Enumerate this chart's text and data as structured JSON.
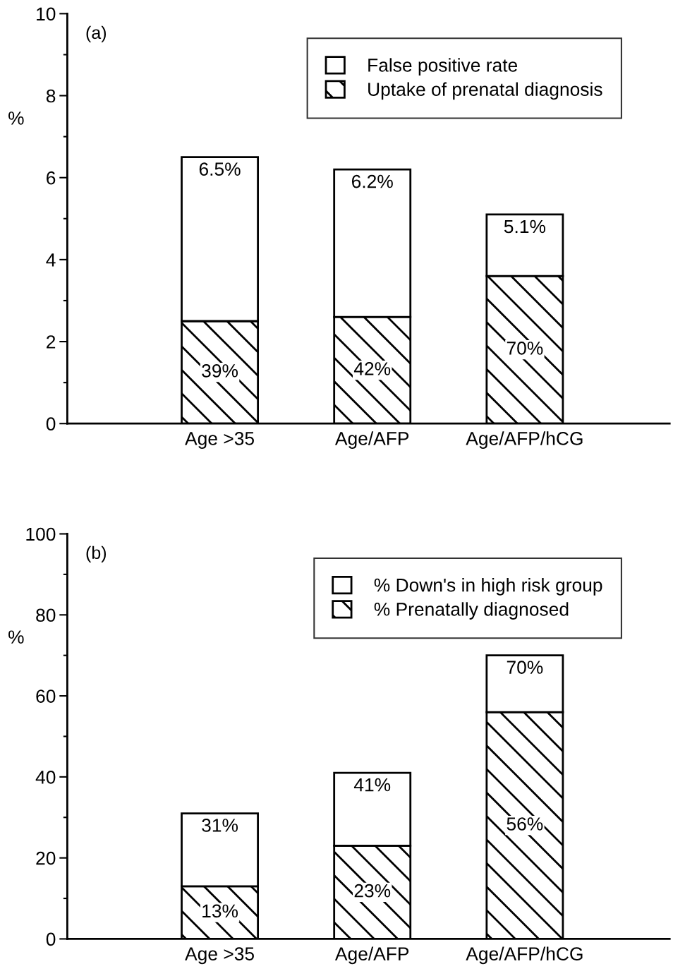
{
  "chart_data": [
    {
      "type": "bar",
      "stacked": true,
      "annotations": [
        "(a)",
        "39%",
        "42%",
        "70%"
      ],
      "ylabel": "%",
      "categories": [
        "Age >35",
        "Age/AFP",
        "Age/AFP/hCG"
      ],
      "ylim": [
        0,
        10
      ],
      "yticks": [
        0,
        2,
        4,
        6,
        8,
        10
      ],
      "legend": "top right",
      "grid": false,
      "series": [
        {
          "name": "Uptake of prenatal diagnosis",
          "color": "#000000",
          "values": [
            2.5,
            2.6,
            3.6
          ]
        },
        {
          "name": "False positive rate",
          "color": "#ffffff",
          "values": [
            4.0,
            3.6,
            1.5
          ]
        }
      ],
      "totals": [
        "6.5%",
        "6.2%",
        "5.1%"
      ]
    },
    {
      "type": "bar",
      "stacked": true,
      "annotations": [
        "(b)",
        "13%",
        "23%",
        "56%"
      ],
      "ylabel": "%",
      "categories": [
        "Age >35",
        "Age/AFP",
        "Age/AFP/hCG"
      ],
      "ylim": [
        0,
        100
      ],
      "yticks": [
        0,
        20,
        40,
        60,
        80,
        100
      ],
      "legend": "top right",
      "grid": false,
      "series": [
        {
          "name": "% Prenatally diagnosed",
          "color": "#000000",
          "values": [
            13,
            23,
            56
          ]
        },
        {
          "name": "% Down's in high risk group",
          "color": "#ffffff",
          "values": [
            18,
            18,
            14
          ]
        }
      ],
      "totals": [
        "31%",
        "41%",
        "70%"
      ]
    }
  ]
}
